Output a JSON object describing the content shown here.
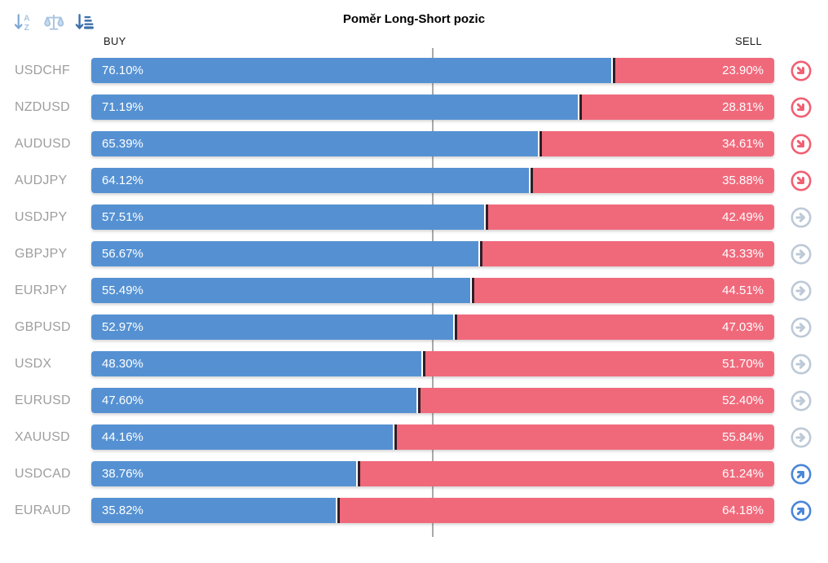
{
  "title": "Poměr Long-Short pozic",
  "axis": {
    "buy": "BUY",
    "sell": "SELL"
  },
  "toolbar": {
    "sort_alpha_icon": "sort-alphabetical",
    "balance_icon": "balance-scale",
    "sort_amount_icon": "sort-amount"
  },
  "colors": {
    "buy_bar": "#5591d2",
    "sell_bar": "#f0697b",
    "bar_divider": "#2e1f27",
    "center_line": "#a9a9a9",
    "pair_label": "#9e9e9e",
    "trend_down": "#f15f72",
    "trend_neutral": "#bdc9d7",
    "trend_up": "#4a86d8",
    "toolbar_inactive": "#a9c4e2",
    "toolbar_active": "#3c71ab"
  },
  "chart_data": {
    "type": "bar",
    "orientation": "horizontal-stacked",
    "title": "Poměr Long-Short pozic",
    "xlim": [
      0,
      100
    ],
    "center_marker": 50,
    "grid": false,
    "categories": [
      "USDCHF",
      "NZDUSD",
      "AUDUSD",
      "AUDJPY",
      "USDJPY",
      "GBPJPY",
      "EURJPY",
      "GBPUSD",
      "USDX",
      "EURUSD",
      "XAUUSD",
      "USDCAD",
      "EURAUD"
    ],
    "series": [
      {
        "name": "BUY",
        "color": "#5591d2",
        "values": [
          76.1,
          71.19,
          65.39,
          64.12,
          57.51,
          56.67,
          55.49,
          52.97,
          48.3,
          47.6,
          44.16,
          38.76,
          35.82
        ],
        "labels": [
          "76.10%",
          "71.19%",
          "65.39%",
          "64.12%",
          "57.51%",
          "56.67%",
          "55.49%",
          "52.97%",
          "48.30%",
          "47.60%",
          "44.16%",
          "38.76%",
          "35.82%"
        ]
      },
      {
        "name": "SELL",
        "color": "#f0697b",
        "values": [
          23.9,
          28.81,
          34.61,
          35.88,
          42.49,
          43.33,
          44.51,
          47.03,
          51.7,
          52.4,
          55.84,
          61.24,
          64.18
        ],
        "labels": [
          "23.90%",
          "28.81%",
          "34.61%",
          "35.88%",
          "42.49%",
          "43.33%",
          "44.51%",
          "47.03%",
          "51.70%",
          "52.40%",
          "55.84%",
          "61.24%",
          "64.18%"
        ]
      }
    ],
    "trend_icons": [
      "down",
      "down",
      "down",
      "down",
      "neutral",
      "neutral",
      "neutral",
      "neutral",
      "neutral",
      "neutral",
      "neutral",
      "up",
      "up"
    ]
  }
}
